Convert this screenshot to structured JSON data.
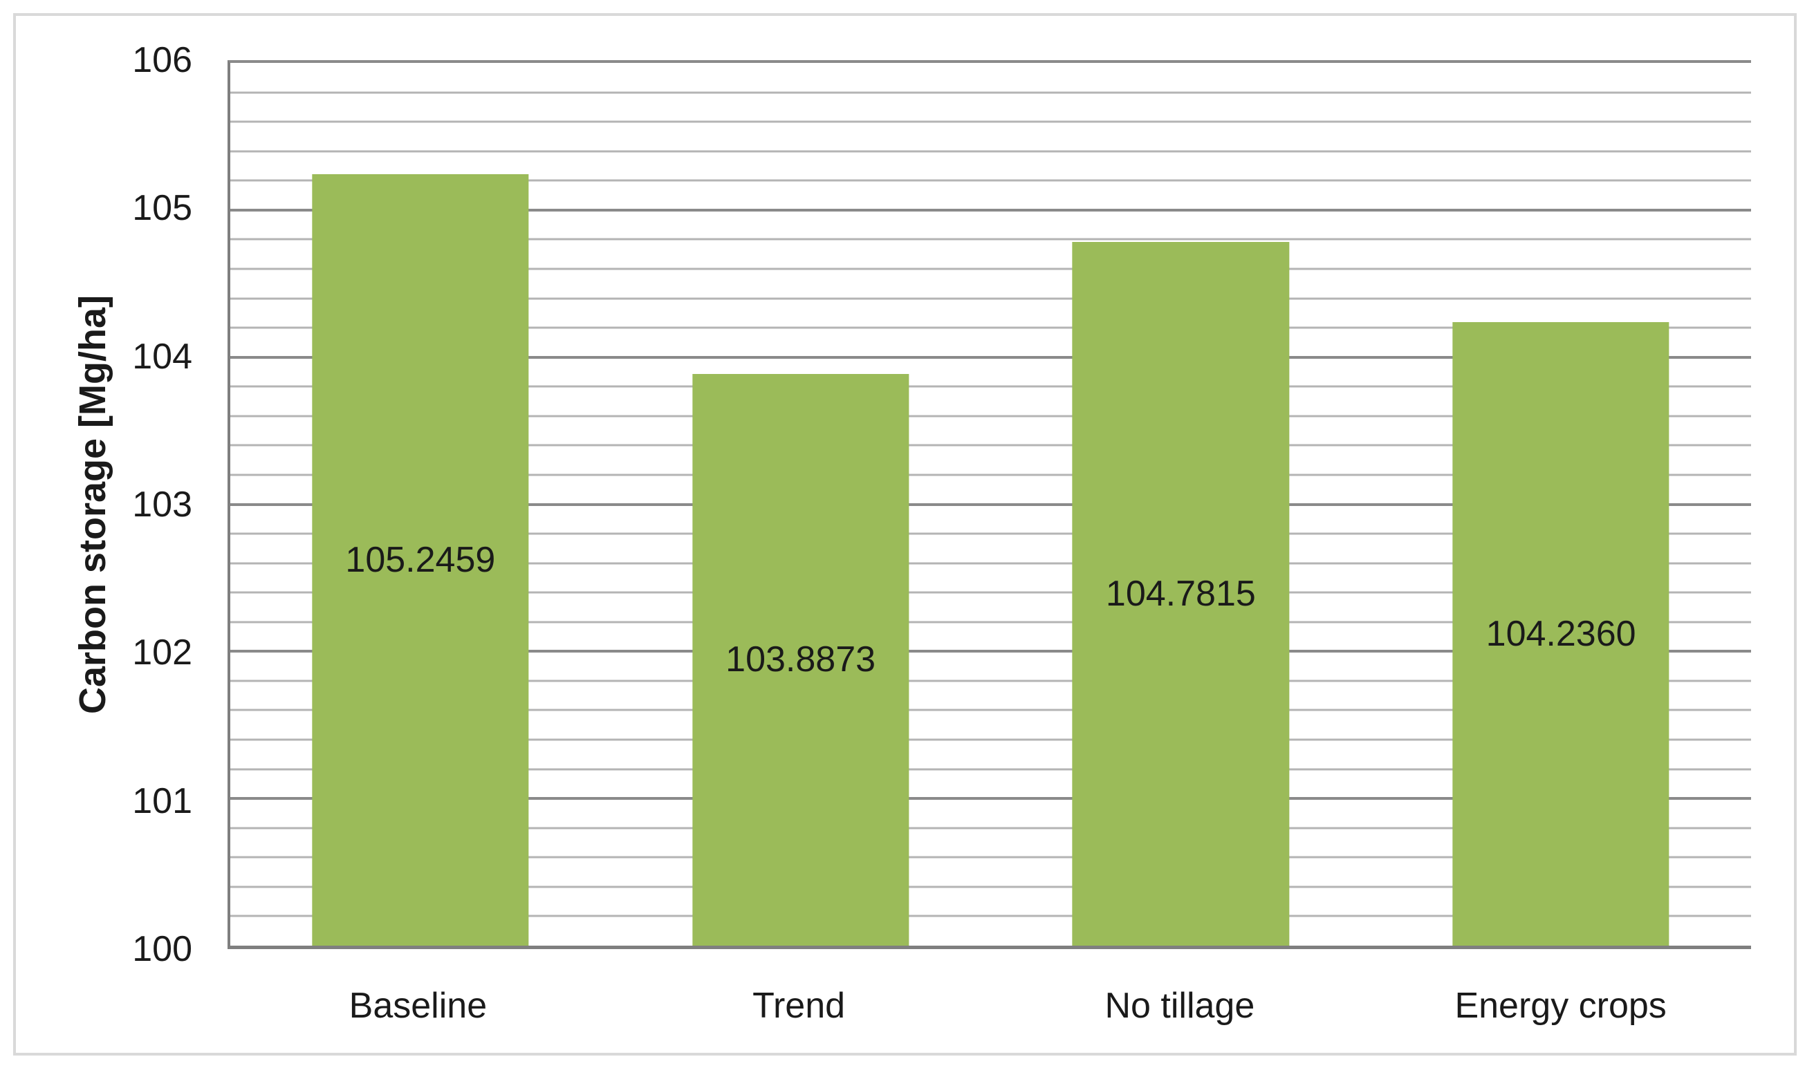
{
  "chart_data": {
    "type": "bar",
    "title": "",
    "xlabel": "",
    "ylabel": "Carbon storage [Mg/ha]",
    "categories": [
      "Baseline",
      "Trend",
      "No tillage",
      "Energy crops"
    ],
    "values": [
      105.2459,
      103.8873,
      104.7815,
      104.236
    ],
    "data_labels": [
      "105.2459",
      "103.8873",
      "104.7815",
      "104.2360"
    ],
    "y_ticks": [
      106,
      105,
      104,
      103,
      102,
      101,
      100
    ],
    "ylim": [
      100,
      106
    ],
    "y_major_step": 1,
    "y_minor_step": 0.2,
    "grid": "horizontal major and minor gridlines",
    "legend": "none",
    "bar_color": "#9BBB59",
    "gridline_major_color": "#8A8A8A",
    "gridline_minor_color": "#B4B4B4",
    "axis_line_color": "#7F7F7F",
    "frame_border_color": "#D9D9D9",
    "text_color": "#1A1A1A",
    "background_color": "#FFFFFF"
  }
}
